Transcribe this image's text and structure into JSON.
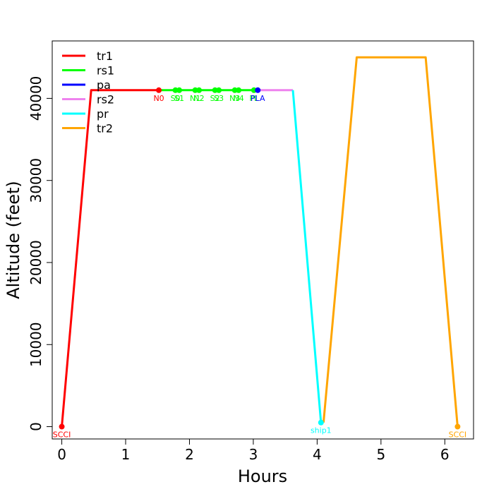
{
  "chart_data": {
    "type": "line",
    "title": "",
    "xlabel": "Hours",
    "ylabel": "Altitude (feet)",
    "xlim": [
      -0.15,
      6.45
    ],
    "ylim": [
      -1500,
      47000
    ],
    "x_ticks": [
      0,
      1,
      2,
      3,
      4,
      5,
      6
    ],
    "y_ticks": [
      0,
      10000,
      20000,
      30000,
      40000
    ],
    "grid": false,
    "legend_position": "top-left",
    "series": [
      {
        "name": "tr1",
        "color": "#ff0000",
        "x": [
          0,
          0.46,
          1.52
        ],
        "y": [
          0,
          41000,
          41000
        ]
      },
      {
        "name": "rs1",
        "color": "#00ff00",
        "x": [
          1.52,
          3.06
        ],
        "y": [
          41000,
          41000
        ]
      },
      {
        "name": "pa",
        "color": "#0000ff",
        "x": [
          3.03,
          3.08
        ],
        "y": [
          41000,
          41000
        ]
      },
      {
        "name": "rs2",
        "color": "#ee82ee",
        "x": [
          3.06,
          3.62
        ],
        "y": [
          41000,
          41000
        ]
      },
      {
        "name": "pr",
        "color": "#00ffff",
        "x": [
          3.62,
          4.06
        ],
        "y": [
          41000,
          500
        ]
      },
      {
        "name": "tr2",
        "color": "#ffa500",
        "x": [
          4.1,
          4.62,
          5.7,
          6.2
        ],
        "y": [
          500,
          45000,
          45000,
          0
        ]
      }
    ],
    "points": [
      {
        "label": "SCCI",
        "x": 0,
        "y": 0,
        "color": "#ff0000"
      },
      {
        "label": "N0",
        "x": 1.52,
        "y": 41000,
        "color": "#ff0000"
      },
      {
        "label": "S0",
        "x": 1.78,
        "y": 41000,
        "color": "#00ff00"
      },
      {
        "label": "S1",
        "x": 1.84,
        "y": 41000,
        "color": "#00ff00"
      },
      {
        "label": "N1",
        "x": 2.09,
        "y": 41000,
        "color": "#00ff00"
      },
      {
        "label": "N2",
        "x": 2.15,
        "y": 41000,
        "color": "#00ff00"
      },
      {
        "label": "S2",
        "x": 2.4,
        "y": 41000,
        "color": "#00ff00"
      },
      {
        "label": "S3",
        "x": 2.46,
        "y": 41000,
        "color": "#00ff00"
      },
      {
        "label": "N3",
        "x": 2.71,
        "y": 41000,
        "color": "#00ff00"
      },
      {
        "label": "N4",
        "x": 2.77,
        "y": 41000,
        "color": "#00ff00"
      },
      {
        "label": "PL",
        "x": 3.01,
        "y": 41000,
        "color": "#00ff00"
      },
      {
        "label": "PLA",
        "x": 3.07,
        "y": 41000,
        "color": "#0000ff"
      },
      {
        "label": "ship1",
        "x": 4.06,
        "y": 500,
        "color": "#00ffff"
      },
      {
        "label": "SCCI",
        "x": 6.2,
        "y": 0,
        "color": "#ffa500"
      }
    ]
  }
}
